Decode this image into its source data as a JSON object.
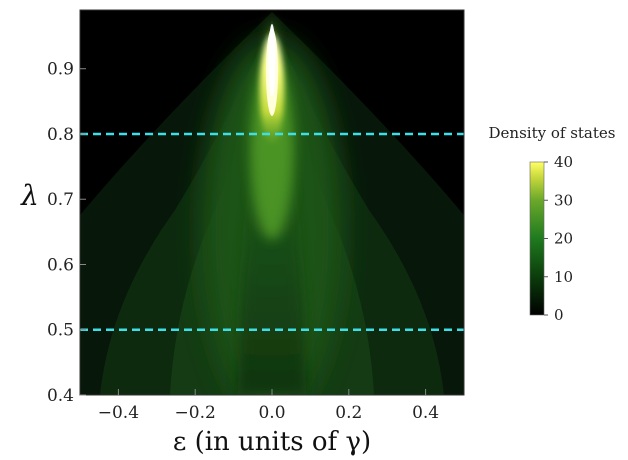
{
  "chart_data": {
    "type": "heatmap",
    "xlabel": "ε (in units of γ)",
    "ylabel": "λ",
    "xlim": [
      -0.5,
      0.5
    ],
    "ylim": [
      0.4,
      0.99
    ],
    "x_ticks": [
      -0.4,
      -0.2,
      0.0,
      0.2,
      0.4
    ],
    "x_tick_labels": [
      "−0.4",
      "−0.2",
      "0.0",
      "0.2",
      "0.4"
    ],
    "y_ticks": [
      0.4,
      0.5,
      0.6,
      0.7,
      0.8,
      0.9
    ],
    "y_tick_labels": [
      "0.4",
      "0.5",
      "0.6",
      "0.7",
      "0.8",
      "0.9"
    ],
    "reference_lines": [
      {
        "orientation": "horizontal",
        "y": 0.8,
        "color": "#3de0e8",
        "style": "dashed"
      },
      {
        "orientation": "horizontal",
        "y": 0.5,
        "color": "#3de0e8",
        "style": "dashed"
      }
    ],
    "colorbar": {
      "title": "Density of states",
      "min": 0,
      "max": 40,
      "ticks": [
        0,
        10,
        20,
        30,
        40
      ],
      "tick_labels": [
        "0",
        "10",
        "20",
        "30",
        "40"
      ],
      "colors": [
        "#000000",
        "#0a3a0a",
        "#1f7a1f",
        "#5aa82a",
        "#c8d83c",
        "#ffff66"
      ]
    },
    "peak": {
      "x": 0.0,
      "y": 0.95,
      "value": 40
    }
  }
}
